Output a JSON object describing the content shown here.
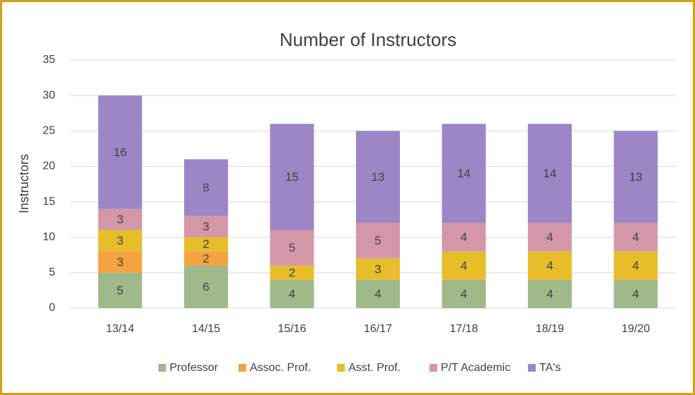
{
  "chart_data": {
    "type": "stacked_bar",
    "title": "Number of Instructors",
    "y_label": "Instructors",
    "categories": [
      "13/14",
      "14/15",
      "15/16",
      "16/17",
      "17/18",
      "18/19",
      "19/20"
    ],
    "series": [
      {
        "name": "Professor",
        "color": "#9fb98a",
        "values": [
          5,
          6,
          4,
          4,
          4,
          4,
          4
        ]
      },
      {
        "name": "Assoc. Prof.",
        "color": "#f4a340",
        "values": [
          3,
          2,
          null,
          null,
          null,
          null,
          null
        ]
      },
      {
        "name": "Asst. Prof.",
        "color": "#e8bd2a",
        "values": [
          3,
          2,
          2,
          3,
          4,
          4,
          4
        ]
      },
      {
        "name": "P/T Academic",
        "color": "#d497a8",
        "values": [
          3,
          3,
          5,
          5,
          4,
          4,
          4
        ]
      },
      {
        "name": "TA's",
        "color": "#9d86c6",
        "values": [
          16,
          8,
          15,
          13,
          14,
          14,
          13
        ]
      }
    ],
    "ylim": [
      0,
      35
    ],
    "yticks": [
      0,
      5,
      10,
      15,
      20,
      25,
      30,
      35
    ],
    "grid": true,
    "legend": "bottom"
  }
}
